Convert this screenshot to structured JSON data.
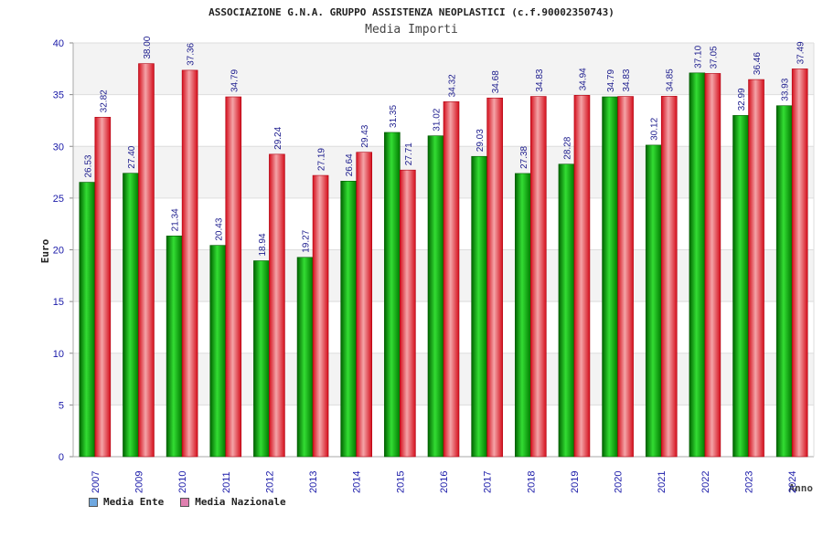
{
  "chart_data": {
    "type": "bar",
    "title": "ASSOCIAZIONE G.N.A. GRUPPO ASSISTENZA NEOPLASTICI (c.f.90002350743)",
    "subtitle": "Media Importi",
    "xlabel": "Anno",
    "ylabel": "Euro",
    "ylim": [
      0,
      40
    ],
    "yticks": [
      0,
      5,
      10,
      15,
      20,
      25,
      30,
      35,
      40
    ],
    "categories": [
      "2007",
      "2009",
      "2010",
      "2011",
      "2012",
      "2013",
      "2014",
      "2015",
      "2016",
      "2017",
      "2018",
      "2019",
      "2020",
      "2021",
      "2022",
      "2023",
      "2024"
    ],
    "series": [
      {
        "name": "Media Ente",
        "color": "#00aa00",
        "legend_color": "#6fa8e0",
        "values": [
          26.53,
          27.4,
          21.34,
          20.43,
          18.94,
          19.27,
          26.64,
          31.35,
          31.02,
          29.03,
          27.38,
          28.28,
          34.79,
          30.12,
          37.1,
          32.99,
          33.93
        ]
      },
      {
        "name": "Media Nazionale",
        "color": "#e8202a",
        "legend_color": "#e080b0",
        "values": [
          32.82,
          38.0,
          37.36,
          34.79,
          29.24,
          27.19,
          29.43,
          27.71,
          34.32,
          34.68,
          34.83,
          34.94,
          34.83,
          34.85,
          37.05,
          36.46,
          37.49
        ]
      }
    ],
    "value_labels": [
      [
        "26.53",
        "27.40",
        "21.34",
        "20.43",
        "18.94",
        "19.27",
        "26.64",
        "31.35",
        "31.02",
        "29.03",
        "27.38",
        "28.28",
        "34.79",
        "30.12",
        "37.10",
        "32.99",
        "33.93"
      ],
      [
        "32.82",
        "38.00",
        "37.36",
        "34.79",
        "29.24",
        "27.19",
        "29.43",
        "27.71",
        "34.32",
        "34.68",
        "34.83",
        "34.94",
        "34.83",
        "34.85",
        "37.05",
        "36.46",
        "37.49"
      ]
    ],
    "grid": true,
    "legend_position": "bottom-left"
  }
}
